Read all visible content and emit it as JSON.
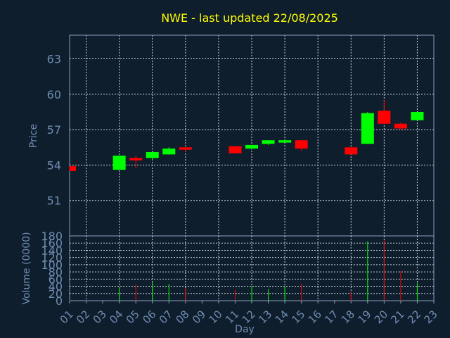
{
  "title": "NWE - last updated 22/08/2025",
  "colors": {
    "background": "#0f1e2d",
    "title": "#ffff00",
    "axis_text": "#6e8cb0",
    "frame": "#8aa0be",
    "grid": "#c8d2dc",
    "up": "#00ff00",
    "down": "#ff0000"
  },
  "chart_data": [
    {
      "type": "candlestick",
      "ylabel": "Price",
      "xlabel": "",
      "ylim": [
        48,
        65
      ],
      "yticks": [
        51,
        54,
        57,
        60,
        63
      ],
      "grid": true,
      "candles": [
        {
          "day": 1,
          "open": 53.9,
          "high": 53.9,
          "low": 53.5,
          "close": 53.5
        },
        {
          "day": 4,
          "open": 53.6,
          "high": 54.8,
          "low": 53.6,
          "close": 54.8
        },
        {
          "day": 5,
          "open": 54.6,
          "high": 54.8,
          "low": 53.7,
          "close": 54.4
        },
        {
          "day": 6,
          "open": 54.6,
          "high": 55.1,
          "low": 54.4,
          "close": 55.1
        },
        {
          "day": 7,
          "open": 54.9,
          "high": 55.5,
          "low": 54.9,
          "close": 55.4
        },
        {
          "day": 8,
          "open": 55.5,
          "high": 55.5,
          "low": 55.1,
          "close": 55.3
        },
        {
          "day": 11,
          "open": 55.6,
          "high": 55.6,
          "low": 55.0,
          "close": 55.0
        },
        {
          "day": 12,
          "open": 55.4,
          "high": 55.7,
          "low": 55.3,
          "close": 55.7
        },
        {
          "day": 13,
          "open": 55.8,
          "high": 56.1,
          "low": 55.7,
          "close": 56.1
        },
        {
          "day": 14,
          "open": 55.9,
          "high": 56.2,
          "low": 55.9,
          "close": 56.1
        },
        {
          "day": 15,
          "open": 56.1,
          "high": 56.1,
          "low": 55.2,
          "close": 55.4
        },
        {
          "day": 18,
          "open": 55.5,
          "high": 55.5,
          "low": 54.9,
          "close": 54.9
        },
        {
          "day": 19,
          "open": 55.8,
          "high": 58.5,
          "low": 55.8,
          "close": 58.4
        },
        {
          "day": 20,
          "open": 58.6,
          "high": 59.5,
          "low": 57.5,
          "close": 57.5
        },
        {
          "day": 21,
          "open": 57.5,
          "high": 57.6,
          "low": 57.0,
          "close": 57.1
        },
        {
          "day": 22,
          "open": 57.8,
          "high": 58.5,
          "low": 57.8,
          "close": 58.5
        }
      ]
    },
    {
      "type": "bar",
      "ylabel": "Volume (0000)",
      "xlabel": "Day",
      "ylim": [
        0,
        180
      ],
      "yticks": [
        0,
        20,
        40,
        60,
        80,
        100,
        120,
        140,
        160,
        180
      ],
      "categories": [
        "01",
        "02",
        "03",
        "04",
        "05",
        "06",
        "07",
        "08",
        "09",
        "10",
        "11",
        "12",
        "13",
        "14",
        "15",
        "16",
        "17",
        "18",
        "19",
        "20",
        "21",
        "22",
        "23"
      ],
      "volumes": [
        {
          "day": 1,
          "value": 2,
          "dir": "down"
        },
        {
          "day": 4,
          "value": 38,
          "dir": "up"
        },
        {
          "day": 5,
          "value": 45,
          "dir": "down"
        },
        {
          "day": 6,
          "value": 52,
          "dir": "up"
        },
        {
          "day": 7,
          "value": 47,
          "dir": "up"
        },
        {
          "day": 8,
          "value": 35,
          "dir": "down"
        },
        {
          "day": 11,
          "value": 30,
          "dir": "down"
        },
        {
          "day": 12,
          "value": 40,
          "dir": "up"
        },
        {
          "day": 13,
          "value": 32,
          "dir": "up"
        },
        {
          "day": 14,
          "value": 40,
          "dir": "up"
        },
        {
          "day": 15,
          "value": 47,
          "dir": "down"
        },
        {
          "day": 18,
          "value": 25,
          "dir": "down"
        },
        {
          "day": 19,
          "value": 165,
          "dir": "up"
        },
        {
          "day": 20,
          "value": 168,
          "dir": "down"
        },
        {
          "day": 21,
          "value": 82,
          "dir": "down"
        },
        {
          "day": 22,
          "value": 50,
          "dir": "up"
        }
      ]
    }
  ]
}
